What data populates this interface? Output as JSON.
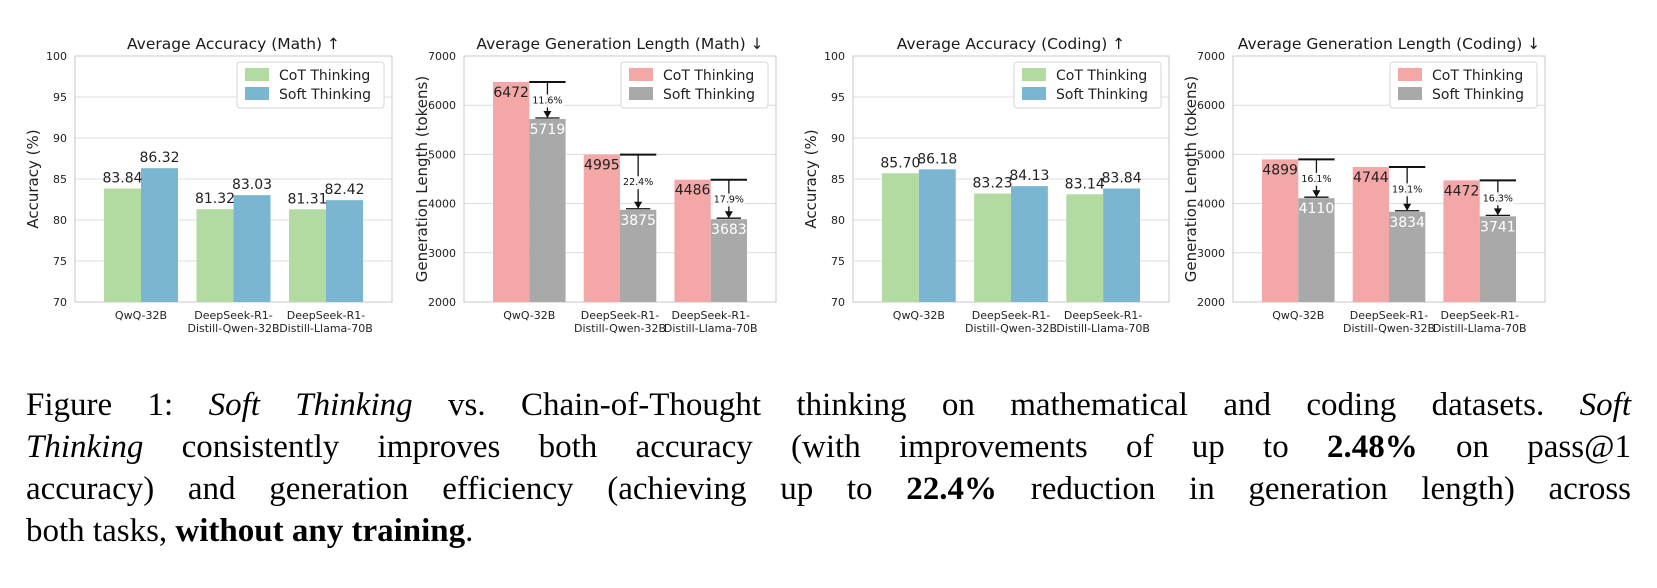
{
  "colors": {
    "cot_acc": "#b2dba1",
    "soft_acc": "#7ab6d2",
    "cot_len": "#f4a7a7",
    "soft_len": "#a9a9a9",
    "grid": "#dcdcdc",
    "frame": "#c8c8c8"
  },
  "chart_data": [
    {
      "type": "bar",
      "title": "Average Accuracy (Math) ↑",
      "ylabel": "Accuracy (%)",
      "ylim": [
        70,
        100
      ],
      "yticks": [
        70,
        75,
        80,
        85,
        90,
        95,
        100
      ],
      "categories": [
        [
          "QwQ-32B"
        ],
        [
          "DeepSeek-R1-",
          "Distill-Qwen-32B"
        ],
        [
          "DeepSeek-R1-",
          "Distill-Llama-70B"
        ]
      ],
      "series": [
        {
          "name": "CoT Thinking",
          "values": [
            83.84,
            81.32,
            81.31
          ],
          "labels": [
            "83.84",
            "81.32",
            "81.31"
          ],
          "color": "#b2dba1"
        },
        {
          "name": "Soft Thinking",
          "values": [
            86.32,
            83.03,
            82.42
          ],
          "labels": [
            "86.32",
            "83.03",
            "82.42"
          ],
          "color": "#7ab6d2"
        }
      ],
      "legend": "top-right",
      "grid": true
    },
    {
      "type": "bar",
      "title": "Average Generation Length (Math) ↓",
      "ylabel": "Generation Length (tokens)",
      "ylim": [
        2000,
        7000
      ],
      "yticks": [
        2000,
        3000,
        4000,
        5000,
        6000,
        7000
      ],
      "categories": [
        [
          "QwQ-32B"
        ],
        [
          "DeepSeek-R1-",
          "Distill-Qwen-32B"
        ],
        [
          "DeepSeek-R1-",
          "Distill-Llama-70B"
        ]
      ],
      "series": [
        {
          "name": "CoT Thinking",
          "values": [
            6472,
            4995,
            4486
          ],
          "labels": [
            "6472",
            "4995",
            "4486"
          ],
          "color": "#f4a7a7"
        },
        {
          "name": "Soft Thinking",
          "values": [
            5719,
            3875,
            3683
          ],
          "labels": [
            "5719",
            "3875",
            "3683"
          ],
          "color": "#a9a9a9"
        }
      ],
      "reductions": [
        "11.6%",
        "22.4%",
        "17.9%"
      ],
      "legend": "top-right",
      "grid": true
    },
    {
      "type": "bar",
      "title": "Average Accuracy (Coding) ↑",
      "ylabel": "Accuracy (%)",
      "ylim": [
        70,
        100
      ],
      "yticks": [
        70,
        75,
        80,
        85,
        90,
        95,
        100
      ],
      "categories": [
        [
          "QwQ-32B"
        ],
        [
          "DeepSeek-R1-",
          "Distill-Qwen-32B"
        ],
        [
          "DeepSeek-R1-",
          "Distill-Llama-70B"
        ]
      ],
      "series": [
        {
          "name": "CoT Thinking",
          "values": [
            85.7,
            83.23,
            83.14
          ],
          "labels": [
            "85.70",
            "83.23",
            "83.14"
          ],
          "color": "#b2dba1"
        },
        {
          "name": "Soft Thinking",
          "values": [
            86.18,
            84.13,
            83.84
          ],
          "labels": [
            "86.18",
            "84.13",
            "83.84"
          ],
          "color": "#7ab6d2"
        }
      ],
      "legend": "top-right",
      "grid": true
    },
    {
      "type": "bar",
      "title": "Average Generation Length (Coding) ↓",
      "ylabel": "Generation Length (tokens)",
      "ylim": [
        2000,
        7000
      ],
      "yticks": [
        2000,
        3000,
        4000,
        5000,
        6000,
        7000
      ],
      "categories": [
        [
          "QwQ-32B"
        ],
        [
          "DeepSeek-R1-",
          "Distill-Qwen-32B"
        ],
        [
          "DeepSeek-R1-",
          "Distill-Llama-70B"
        ]
      ],
      "series": [
        {
          "name": "CoT Thinking",
          "values": [
            4899,
            4744,
            4472
          ],
          "labels": [
            "4899",
            "4744",
            "4472"
          ],
          "color": "#f4a7a7"
        },
        {
          "name": "Soft Thinking",
          "values": [
            4110,
            3834,
            3741
          ],
          "labels": [
            "4110",
            "3834",
            "3741"
          ],
          "color": "#a9a9a9"
        }
      ],
      "reductions": [
        "16.1%",
        "19.1%",
        "16.3%"
      ],
      "legend": "top-right",
      "grid": true
    }
  ],
  "caption": {
    "l1_a": "Figure 1: ",
    "l1_b": "Soft Thinking",
    "l1_c": " vs. Chain-of-Thought thinking on mathematical and coding datasets. ",
    "l1_d": "Soft",
    "l2_a": "Thinking",
    "l2_b": " consistently improves both accuracy (with improvements of up to ",
    "l2_c": "2.48%",
    "l2_d": " on pass@1",
    "l3_a": "accuracy) and generation efficiency (achieving up to ",
    "l3_b": "22.4%",
    "l3_c": " reduction in generation length) across",
    "l4_a": "both tasks, ",
    "l4_b": "without any training",
    "l4_c": "."
  }
}
